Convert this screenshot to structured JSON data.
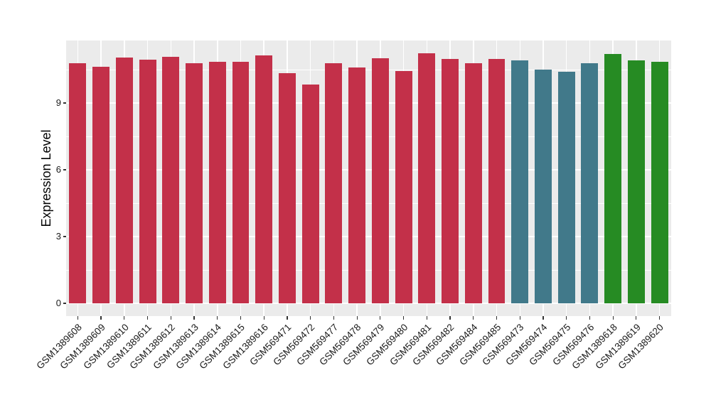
{
  "chart_data": {
    "type": "bar",
    "title": "",
    "xlabel": "",
    "ylabel": "Expression Level",
    "legend": "none",
    "grid": "on",
    "yticks": [
      0,
      3,
      6,
      9
    ],
    "yminor": [
      1.5,
      4.5,
      7.5,
      10.5
    ],
    "ylim": [
      -0.55,
      11.83
    ],
    "panel_background": "#EBEBEB",
    "grid_color": "#FFFFFF",
    "tick_color": "#333333",
    "axis_text_color": "#1A1A1A",
    "categories": [
      "GSM1389608",
      "GSM1389609",
      "GSM1389610",
      "GSM1389611",
      "GSM1389612",
      "GSM1389613",
      "GSM1389614",
      "GSM1389615",
      "GSM1389616",
      "GSM569471",
      "GSM569472",
      "GSM569477",
      "GSM569478",
      "GSM569479",
      "GSM569480",
      "GSM569481",
      "GSM569482",
      "GSM569484",
      "GSM569485",
      "GSM569473",
      "GSM569474",
      "GSM569475",
      "GSM569476",
      "GSM1389618",
      "GSM1389619",
      "GSM1389620"
    ],
    "values": [
      10.8,
      10.62,
      11.05,
      10.95,
      11.08,
      10.8,
      10.84,
      10.84,
      11.15,
      10.35,
      9.84,
      10.78,
      10.6,
      11.01,
      10.43,
      11.23,
      10.97,
      10.8,
      10.99,
      10.91,
      10.51,
      10.41,
      10.8,
      11.2,
      10.91,
      10.86
    ],
    "groups": [
      "group1",
      "group1",
      "group1",
      "group1",
      "group1",
      "group1",
      "group1",
      "group1",
      "group1",
      "group1",
      "group1",
      "group1",
      "group1",
      "group1",
      "group1",
      "group1",
      "group1",
      "group1",
      "group1",
      "group2",
      "group2",
      "group2",
      "group2",
      "group3",
      "group3",
      "group3"
    ],
    "group_colors": {
      "group1": "#C33049",
      "group2": "#41798A",
      "group3": "#268B23"
    }
  }
}
